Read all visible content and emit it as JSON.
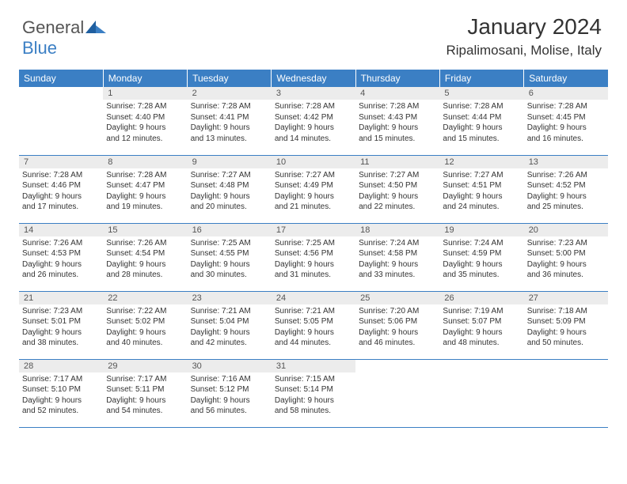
{
  "logo": {
    "general": "General",
    "blue": "Blue"
  },
  "header": {
    "title": "January 2024",
    "location": "Ripalimosani, Molise, Italy"
  },
  "colors": {
    "primary": "#3b7fc4",
    "header_bg": "#ececec",
    "text": "#333333"
  },
  "weekdays": [
    "Sunday",
    "Monday",
    "Tuesday",
    "Wednesday",
    "Thursday",
    "Friday",
    "Saturday"
  ],
  "weeks": [
    [
      {
        "num": "",
        "lines": [
          "",
          "",
          "",
          ""
        ]
      },
      {
        "num": "1",
        "lines": [
          "Sunrise: 7:28 AM",
          "Sunset: 4:40 PM",
          "Daylight: 9 hours",
          "and 12 minutes."
        ]
      },
      {
        "num": "2",
        "lines": [
          "Sunrise: 7:28 AM",
          "Sunset: 4:41 PM",
          "Daylight: 9 hours",
          "and 13 minutes."
        ]
      },
      {
        "num": "3",
        "lines": [
          "Sunrise: 7:28 AM",
          "Sunset: 4:42 PM",
          "Daylight: 9 hours",
          "and 14 minutes."
        ]
      },
      {
        "num": "4",
        "lines": [
          "Sunrise: 7:28 AM",
          "Sunset: 4:43 PM",
          "Daylight: 9 hours",
          "and 15 minutes."
        ]
      },
      {
        "num": "5",
        "lines": [
          "Sunrise: 7:28 AM",
          "Sunset: 4:44 PM",
          "Daylight: 9 hours",
          "and 15 minutes."
        ]
      },
      {
        "num": "6",
        "lines": [
          "Sunrise: 7:28 AM",
          "Sunset: 4:45 PM",
          "Daylight: 9 hours",
          "and 16 minutes."
        ]
      }
    ],
    [
      {
        "num": "7",
        "lines": [
          "Sunrise: 7:28 AM",
          "Sunset: 4:46 PM",
          "Daylight: 9 hours",
          "and 17 minutes."
        ]
      },
      {
        "num": "8",
        "lines": [
          "Sunrise: 7:28 AM",
          "Sunset: 4:47 PM",
          "Daylight: 9 hours",
          "and 19 minutes."
        ]
      },
      {
        "num": "9",
        "lines": [
          "Sunrise: 7:27 AM",
          "Sunset: 4:48 PM",
          "Daylight: 9 hours",
          "and 20 minutes."
        ]
      },
      {
        "num": "10",
        "lines": [
          "Sunrise: 7:27 AM",
          "Sunset: 4:49 PM",
          "Daylight: 9 hours",
          "and 21 minutes."
        ]
      },
      {
        "num": "11",
        "lines": [
          "Sunrise: 7:27 AM",
          "Sunset: 4:50 PM",
          "Daylight: 9 hours",
          "and 22 minutes."
        ]
      },
      {
        "num": "12",
        "lines": [
          "Sunrise: 7:27 AM",
          "Sunset: 4:51 PM",
          "Daylight: 9 hours",
          "and 24 minutes."
        ]
      },
      {
        "num": "13",
        "lines": [
          "Sunrise: 7:26 AM",
          "Sunset: 4:52 PM",
          "Daylight: 9 hours",
          "and 25 minutes."
        ]
      }
    ],
    [
      {
        "num": "14",
        "lines": [
          "Sunrise: 7:26 AM",
          "Sunset: 4:53 PM",
          "Daylight: 9 hours",
          "and 26 minutes."
        ]
      },
      {
        "num": "15",
        "lines": [
          "Sunrise: 7:26 AM",
          "Sunset: 4:54 PM",
          "Daylight: 9 hours",
          "and 28 minutes."
        ]
      },
      {
        "num": "16",
        "lines": [
          "Sunrise: 7:25 AM",
          "Sunset: 4:55 PM",
          "Daylight: 9 hours",
          "and 30 minutes."
        ]
      },
      {
        "num": "17",
        "lines": [
          "Sunrise: 7:25 AM",
          "Sunset: 4:56 PM",
          "Daylight: 9 hours",
          "and 31 minutes."
        ]
      },
      {
        "num": "18",
        "lines": [
          "Sunrise: 7:24 AM",
          "Sunset: 4:58 PM",
          "Daylight: 9 hours",
          "and 33 minutes."
        ]
      },
      {
        "num": "19",
        "lines": [
          "Sunrise: 7:24 AM",
          "Sunset: 4:59 PM",
          "Daylight: 9 hours",
          "and 35 minutes."
        ]
      },
      {
        "num": "20",
        "lines": [
          "Sunrise: 7:23 AM",
          "Sunset: 5:00 PM",
          "Daylight: 9 hours",
          "and 36 minutes."
        ]
      }
    ],
    [
      {
        "num": "21",
        "lines": [
          "Sunrise: 7:23 AM",
          "Sunset: 5:01 PM",
          "Daylight: 9 hours",
          "and 38 minutes."
        ]
      },
      {
        "num": "22",
        "lines": [
          "Sunrise: 7:22 AM",
          "Sunset: 5:02 PM",
          "Daylight: 9 hours",
          "and 40 minutes."
        ]
      },
      {
        "num": "23",
        "lines": [
          "Sunrise: 7:21 AM",
          "Sunset: 5:04 PM",
          "Daylight: 9 hours",
          "and 42 minutes."
        ]
      },
      {
        "num": "24",
        "lines": [
          "Sunrise: 7:21 AM",
          "Sunset: 5:05 PM",
          "Daylight: 9 hours",
          "and 44 minutes."
        ]
      },
      {
        "num": "25",
        "lines": [
          "Sunrise: 7:20 AM",
          "Sunset: 5:06 PM",
          "Daylight: 9 hours",
          "and 46 minutes."
        ]
      },
      {
        "num": "26",
        "lines": [
          "Sunrise: 7:19 AM",
          "Sunset: 5:07 PM",
          "Daylight: 9 hours",
          "and 48 minutes."
        ]
      },
      {
        "num": "27",
        "lines": [
          "Sunrise: 7:18 AM",
          "Sunset: 5:09 PM",
          "Daylight: 9 hours",
          "and 50 minutes."
        ]
      }
    ],
    [
      {
        "num": "28",
        "lines": [
          "Sunrise: 7:17 AM",
          "Sunset: 5:10 PM",
          "Daylight: 9 hours",
          "and 52 minutes."
        ]
      },
      {
        "num": "29",
        "lines": [
          "Sunrise: 7:17 AM",
          "Sunset: 5:11 PM",
          "Daylight: 9 hours",
          "and 54 minutes."
        ]
      },
      {
        "num": "30",
        "lines": [
          "Sunrise: 7:16 AM",
          "Sunset: 5:12 PM",
          "Daylight: 9 hours",
          "and 56 minutes."
        ]
      },
      {
        "num": "31",
        "lines": [
          "Sunrise: 7:15 AM",
          "Sunset: 5:14 PM",
          "Daylight: 9 hours",
          "and 58 minutes."
        ]
      },
      {
        "num": "",
        "lines": [
          "",
          "",
          "",
          ""
        ]
      },
      {
        "num": "",
        "lines": [
          "",
          "",
          "",
          ""
        ]
      },
      {
        "num": "",
        "lines": [
          "",
          "",
          "",
          ""
        ]
      }
    ]
  ]
}
